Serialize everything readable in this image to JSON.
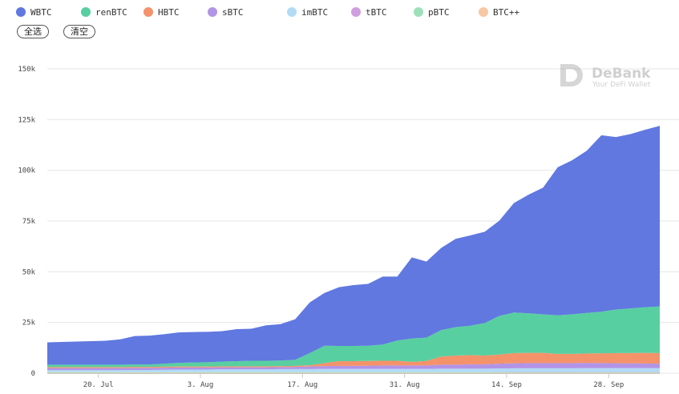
{
  "legend": [
    {
      "label": "WBTC",
      "color": "#6078e0"
    },
    {
      "label": "renBTC",
      "color": "#58cfa0"
    },
    {
      "label": "HBTC",
      "color": "#f4926a"
    },
    {
      "label": "sBTC",
      "color": "#b294e6"
    },
    {
      "label": "imBTC",
      "color": "#b2dbf6"
    },
    {
      "label": "tBTC",
      "color": "#d09ede"
    },
    {
      "label": "pBTC",
      "color": "#9ee0b8"
    },
    {
      "label": "BTC++",
      "color": "#f8c8a4"
    }
  ],
  "buttons": {
    "select_all": "全选",
    "clear": "清空"
  },
  "watermark": {
    "brand": "DeBank",
    "tagline": "Your DeFi Wallet"
  },
  "chart_data": {
    "type": "area",
    "stacked": true,
    "x": [
      "2020-07-13",
      "2020-07-15",
      "2020-07-17",
      "2020-07-19",
      "2020-07-21",
      "2020-07-23",
      "2020-07-25",
      "2020-07-27",
      "2020-07-29",
      "2020-07-31",
      "2020-08-02",
      "2020-08-04",
      "2020-08-06",
      "2020-08-08",
      "2020-08-10",
      "2020-08-12",
      "2020-08-14",
      "2020-08-16",
      "2020-08-18",
      "2020-08-20",
      "2020-08-22",
      "2020-08-24",
      "2020-08-26",
      "2020-08-28",
      "2020-08-30",
      "2020-09-01",
      "2020-09-03",
      "2020-09-05",
      "2020-09-07",
      "2020-09-09",
      "2020-09-11",
      "2020-09-13",
      "2020-09-15",
      "2020-09-17",
      "2020-09-19",
      "2020-09-21",
      "2020-09-23",
      "2020-09-25",
      "2020-09-27",
      "2020-09-29",
      "2020-10-01",
      "2020-10-03",
      "2020-10-05"
    ],
    "series": [
      {
        "name": "BTC++",
        "values": [
          200,
          200,
          200,
          200,
          200,
          200,
          200,
          200,
          200,
          200,
          200,
          200,
          200,
          200,
          200,
          200,
          200,
          200,
          200,
          200,
          200,
          200,
          200,
          200,
          200,
          200,
          200,
          200,
          200,
          200,
          200,
          200,
          200,
          200,
          200,
          200,
          200,
          200,
          200,
          200,
          200,
          200,
          200
        ]
      },
      {
        "name": "pBTC",
        "values": [
          300,
          300,
          300,
          300,
          300,
          300,
          300,
          300,
          300,
          300,
          300,
          300,
          300,
          300,
          300,
          300,
          300,
          300,
          300,
          300,
          300,
          300,
          300,
          300,
          300,
          300,
          300,
          300,
          300,
          300,
          300,
          300,
          300,
          300,
          300,
          300,
          300,
          300,
          300,
          300,
          300,
          300,
          300
        ]
      },
      {
        "name": "tBTC",
        "values": [
          0,
          0,
          0,
          0,
          0,
          0,
          0,
          0,
          0,
          0,
          0,
          0,
          0,
          0,
          0,
          0,
          0,
          0,
          0,
          0,
          0,
          0,
          0,
          0,
          0,
          0,
          0,
          0,
          0,
          0,
          0,
          100,
          100,
          100,
          100,
          100,
          100,
          100,
          100,
          100,
          100,
          100,
          100
        ]
      },
      {
        "name": "imBTC",
        "values": [
          1000,
          1000,
          1000,
          1000,
          1000,
          1000,
          1100,
          1100,
          1200,
          1300,
          1300,
          1300,
          1400,
          1400,
          1400,
          1400,
          1500,
          1500,
          1500,
          1600,
          1600,
          1600,
          1600,
          1600,
          1600,
          1600,
          1600,
          1700,
          1700,
          1700,
          1700,
          1700,
          1800,
          1800,
          1800,
          1800,
          1800,
          1900,
          1900,
          1900,
          1900,
          1900,
          1900
        ]
      },
      {
        "name": "sBTC",
        "values": [
          1000,
          1000,
          1000,
          1000,
          1000,
          1000,
          1000,
          1000,
          1000,
          1000,
          1000,
          1000,
          1000,
          1000,
          1000,
          1000,
          1000,
          1100,
          1300,
          1400,
          1500,
          1500,
          1600,
          1700,
          1700,
          1700,
          1700,
          2000,
          2000,
          2200,
          2200,
          2400,
          2500,
          2600,
          2600,
          2600,
          2600,
          2600,
          2500,
          2400,
          2400,
          2300,
          2200
        ]
      },
      {
        "name": "HBTC",
        "values": [
          500,
          500,
          500,
          500,
          500,
          500,
          500,
          500,
          500,
          500,
          500,
          500,
          500,
          500,
          500,
          500,
          500,
          500,
          600,
          1500,
          2300,
          2300,
          2300,
          2300,
          2300,
          1800,
          2200,
          4000,
          4500,
          4500,
          4300,
          4500,
          5000,
          5000,
          5000,
          4500,
          4500,
          4600,
          4800,
          5000,
          5000,
          5200,
          5200
        ]
      },
      {
        "name": "renBTC",
        "values": [
          1200,
          1200,
          1200,
          1200,
          1200,
          1200,
          1200,
          1200,
          1500,
          1800,
          2000,
          2100,
          2300,
          2500,
          2700,
          2700,
          2700,
          3000,
          6000,
          8500,
          7500,
          7500,
          7500,
          8000,
          10000,
          11500,
          11500,
          13000,
          14000,
          14500,
          16000,
          19000,
          20000,
          19500,
          19000,
          19000,
          19500,
          20000,
          20500,
          21500,
          22000,
          22500,
          23000
        ]
      },
      {
        "name": "WBTC",
        "values": [
          11000,
          11200,
          11400,
          11600,
          11800,
          12500,
          14000,
          14200,
          14500,
          15000,
          15000,
          15000,
          15000,
          15800,
          15800,
          17500,
          18000,
          20000,
          25000,
          26000,
          29000,
          30000,
          30500,
          33500,
          31500,
          40000,
          37500,
          40500,
          43500,
          44500,
          45000,
          47000,
          54000,
          58500,
          62500,
          73000,
          76000,
          80000,
          87000,
          85000,
          86000,
          87500,
          89000
        ]
      }
    ],
    "x_tick_labels": [
      "20. Jul",
      "3. Aug",
      "17. Aug",
      "31. Aug",
      "14. Sep",
      "28. Sep"
    ],
    "x_tick_dates": [
      "2020-07-20",
      "2020-08-03",
      "2020-08-17",
      "2020-08-31",
      "2020-09-14",
      "2020-09-28"
    ],
    "y_tick_labels": [
      "0",
      "25k",
      "50k",
      "75k",
      "100k",
      "125k",
      "150k"
    ],
    "y_tick_values": [
      0,
      25000,
      50000,
      75000,
      100000,
      125000,
      150000
    ],
    "ylim": [
      0,
      150000
    ],
    "grid": true,
    "legend_position": "top-left"
  }
}
